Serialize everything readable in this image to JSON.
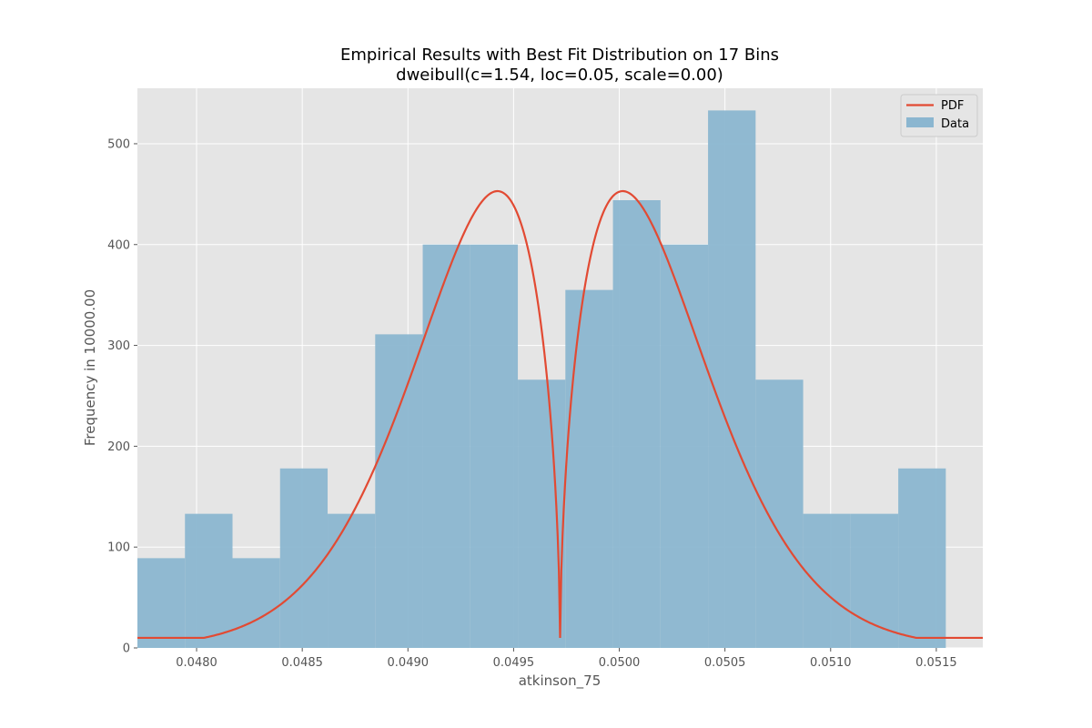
{
  "chart_data": {
    "type": "bar",
    "title": "Empirical Results with Best Fit Distribution on 17 Bins",
    "subtitle": "dweibull(c=1.54, loc=0.05, scale=0.00)",
    "xlabel": "atkinson_75",
    "ylabel": "Frequency in 10000.00",
    "xlim": [
      0.04772,
      0.05172
    ],
    "ylim": [
      0,
      555
    ],
    "xticks": [
      "0.0480",
      "0.0485",
      "0.0490",
      "0.0495",
      "0.0500",
      "0.0505",
      "0.0510",
      "0.0515"
    ],
    "yticks": [
      "0",
      "100",
      "200",
      "300",
      "400",
      "500"
    ],
    "grid": true,
    "legend_position": "top-right",
    "colors": {
      "background": "#e5e5e5",
      "grid": "#ffffff",
      "bar": "#8bb6d0",
      "pdf": "#e24a33"
    },
    "histogram": {
      "name": "Data",
      "bin_edges": [
        0.04772,
        0.047945,
        0.04817,
        0.048395,
        0.04862,
        0.048845,
        0.04907,
        0.049295,
        0.04952,
        0.049745,
        0.04997,
        0.050195,
        0.05042,
        0.050645,
        0.05087,
        0.051095,
        0.05132,
        0.051545
      ],
      "values": [
        89,
        133,
        89,
        178,
        133,
        311,
        400,
        400,
        266,
        355,
        444,
        400,
        533,
        266,
        133,
        133,
        178
      ]
    },
    "pdf": {
      "name": "PDF",
      "c": 1.54,
      "loc": 0.04972,
      "scale": 0.000585,
      "peak": 453,
      "x_range": [
        0.04772,
        0.05172
      ]
    }
  }
}
